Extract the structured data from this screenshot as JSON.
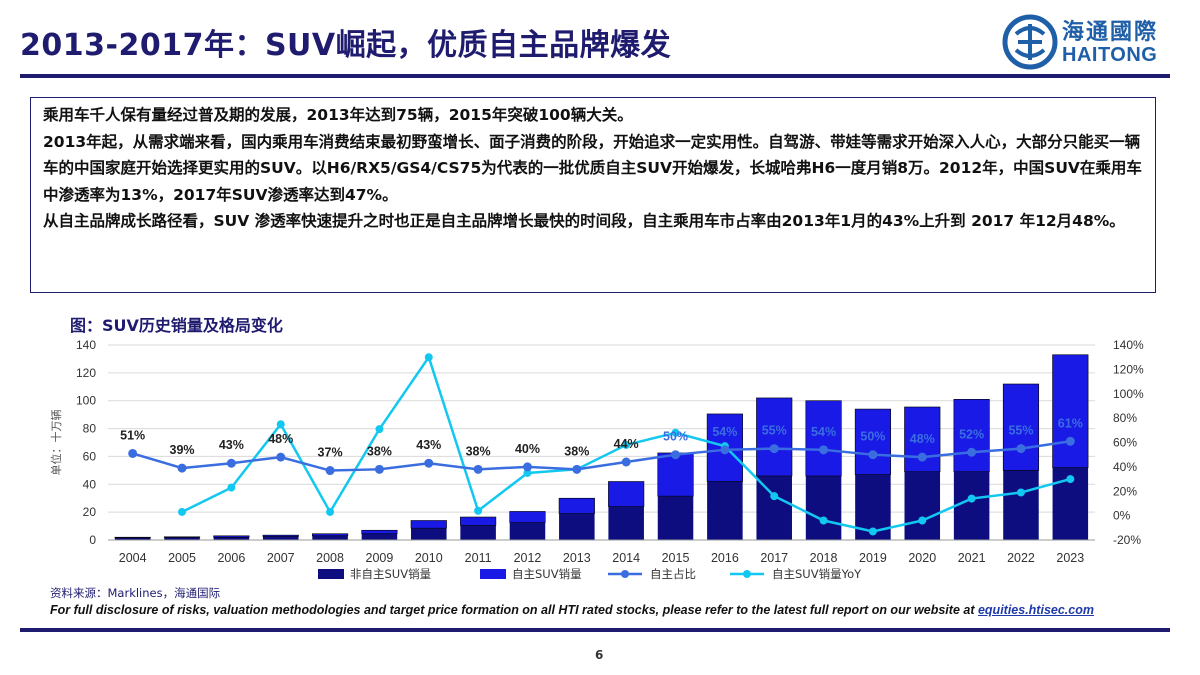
{
  "slide": {
    "title": "2013-2017年：SUV崛起，优质自主品牌爆发",
    "logo_cn": "海通國際",
    "logo_en": "HAITONG",
    "paragraphs": [
      "乘用车千人保有量经过普及期的发展，2013年达到75辆，2015年突破100辆大关。",
      "2013年起，从需求端来看，国内乘用车消费结束最初野蛮增长、面子消费的阶段，开始追求一定实用性。自驾游、带娃等需求开始深入人心，大部分只能买一辆车的中国家庭开始选择更实用的SUV。以H6/RX5/GS4/CS75为代表的一批优质自主SUV开始爆发，长城哈弗H6一度月销8万。2012年，中国SUV在乘用车中渗透率为13%，2017年SUV渗透率达到47%。",
      "从自主品牌成长路径看，SUV 渗透率快速提升之时也正是自主品牌增长最快的时间段，自主乘用车市占率由2013年1月的43%上升到 2017 年12月48%。"
    ],
    "figure_title": "图：SUV历史销量及格局变化",
    "source": "资料来源：Marklines，海通国际",
    "disclosure_text": "For full disclosure of risks, valuation methodologies and target price formation on all HTI rated stocks, please refer to the latest full report on our website at ",
    "disclosure_link": "equities.htisec.com",
    "page_number": "6",
    "colors": {
      "brand": "#1f1b6f",
      "logo": "#1f5fa8",
      "non_own_brand_bar": "#0d0d80",
      "own_brand_bar": "#1a1ae6",
      "own_share_line": "#3a6ee0",
      "yoy_line": "#12c8f0"
    }
  },
  "chart_data": {
    "type": "bar",
    "stacked": true,
    "categories": [
      "2004",
      "2005",
      "2006",
      "2007",
      "2008",
      "2009",
      "2010",
      "2011",
      "2012",
      "2013",
      "2014",
      "2015",
      "2016",
      "2017",
      "2018",
      "2019",
      "2020",
      "2021",
      "2022",
      "2023"
    ],
    "series": [
      {
        "name": "非自主SUV销量",
        "type": "bar",
        "axis": "left",
        "values": [
          1.5,
          1.8,
          2.0,
          2.5,
          3.0,
          4.5,
          8.5,
          10.5,
          12.5,
          19.0,
          24.0,
          31.5,
          42.0,
          46.0,
          46.0,
          47.0,
          49.0,
          49.0,
          50.0,
          52.0
        ]
      },
      {
        "name": "自主SUV销量",
        "type": "bar",
        "axis": "left",
        "values": [
          0.5,
          0.5,
          1.0,
          1.0,
          1.5,
          2.5,
          5.5,
          6.0,
          8.0,
          11.0,
          18.0,
          31.0,
          48.5,
          56.0,
          54.0,
          47.0,
          46.5,
          52.0,
          62.0,
          81.0
        ]
      },
      {
        "name": "自主占比",
        "type": "line",
        "axis": "right",
        "values": [
          51,
          39,
          43,
          48,
          37,
          38,
          43,
          38,
          40,
          38,
          44,
          50,
          54,
          55,
          54,
          50,
          48,
          52,
          55,
          61
        ],
        "labels": [
          "51%",
          "39%",
          "43%",
          "48%",
          "37%",
          "38%",
          "43%",
          "38%",
          "40%",
          "38%",
          "44%",
          "50%",
          "54%",
          "55%",
          "54%",
          "50%",
          "48%",
          "52%",
          "55%",
          "61%"
        ]
      },
      {
        "name": "自主SUV销量YoY",
        "type": "line",
        "axis": "right",
        "values": [
          null,
          3,
          23,
          75,
          3,
          71,
          130,
          4,
          35,
          38,
          58,
          68,
          57,
          16,
          -4,
          -13,
          -4,
          14,
          19,
          30
        ]
      }
    ],
    "ylabel": "单位：十万辆",
    "ylim": [
      0,
      140
    ],
    "yticks": [
      "0",
      "20",
      "40",
      "60",
      "80",
      "100",
      "120",
      "140"
    ],
    "y2lim": [
      -20,
      140
    ],
    "y2ticks": [
      "-20%",
      "0%",
      "20%",
      "40%",
      "60%",
      "80%",
      "100%",
      "120%",
      "140%"
    ],
    "legend_position": "bottom",
    "grid": true
  }
}
